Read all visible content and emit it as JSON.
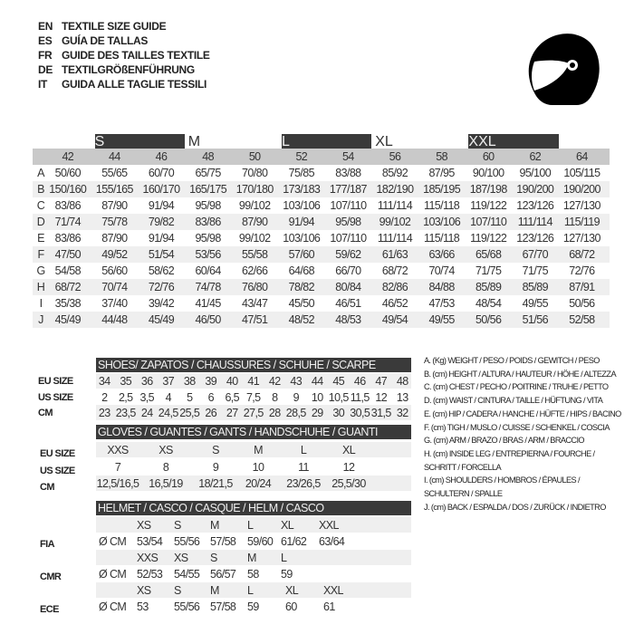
{
  "titles": [
    {
      "code": "EN",
      "text": "TEXTILE SIZE GUIDE"
    },
    {
      "code": "ES",
      "text": "GUÍA DE TALLAS"
    },
    {
      "code": "FR",
      "text": "GUIDE DES TAILLES TEXTILE"
    },
    {
      "code": "DE",
      "text": "TEXTILGRÖßENFÜHRUNG"
    },
    {
      "code": "IT",
      "text": "GUIDA ALLE TAGLIE TESSILI"
    }
  ],
  "icon": "helmet-icon",
  "textile": {
    "size_bands": [
      {
        "label": "S",
        "dark": true
      },
      {
        "label": "M",
        "dark": false
      },
      {
        "label": "L",
        "dark": true
      },
      {
        "label": "XL",
        "dark": false
      },
      {
        "label": "XXL",
        "dark": true
      }
    ],
    "columns": [
      "42",
      "44",
      "46",
      "48",
      "50",
      "52",
      "54",
      "56",
      "58",
      "60",
      "62",
      "64"
    ],
    "rows": [
      {
        "key": "A",
        "values": [
          "50/60",
          "55/65",
          "60/70",
          "65/75",
          "70/80",
          "75/85",
          "83/88",
          "85/92",
          "87/95",
          "90/100",
          "95/100",
          "105/115"
        ]
      },
      {
        "key": "B",
        "values": [
          "150/160",
          "155/165",
          "160/170",
          "165/175",
          "170/180",
          "173/183",
          "177/187",
          "182/190",
          "185/195",
          "187/198",
          "190/200",
          "190/200"
        ]
      },
      {
        "key": "C",
        "values": [
          "83/86",
          "87/90",
          "91/94",
          "95/98",
          "99/102",
          "103/106",
          "107/110",
          "111/114",
          "115/118",
          "119/122",
          "123/126",
          "127/130"
        ]
      },
      {
        "key": "D",
        "values": [
          "71/74",
          "75/78",
          "79/82",
          "83/86",
          "87/90",
          "91/94",
          "95/98",
          "99/102",
          "103/106",
          "107/110",
          "111/114",
          "115/119"
        ]
      },
      {
        "key": "E",
        "values": [
          "83/86",
          "87/90",
          "91/94",
          "95/98",
          "99/102",
          "103/106",
          "107/110",
          "111/114",
          "115/118",
          "119/122",
          "123/126",
          "127/130"
        ]
      },
      {
        "key": "F",
        "values": [
          "47/50",
          "49/52",
          "51/54",
          "53/56",
          "55/58",
          "57/60",
          "59/62",
          "61/63",
          "63/66",
          "65/68",
          "67/70",
          "68/72"
        ]
      },
      {
        "key": "G",
        "values": [
          "54/58",
          "56/60",
          "58/62",
          "60/64",
          "62/66",
          "64/68",
          "66/70",
          "68/72",
          "70/74",
          "71/75",
          "71/75",
          "72/76"
        ]
      },
      {
        "key": "H",
        "values": [
          "68/72",
          "70/74",
          "72/76",
          "74/78",
          "76/80",
          "78/82",
          "80/84",
          "82/86",
          "84/88",
          "85/89",
          "85/89",
          "87/91"
        ]
      },
      {
        "key": "I",
        "values": [
          "35/38",
          "37/40",
          "39/42",
          "41/45",
          "43/47",
          "45/50",
          "46/51",
          "46/52",
          "47/53",
          "48/54",
          "49/55",
          "50/56"
        ]
      },
      {
        "key": "J",
        "values": [
          "45/49",
          "44/48",
          "45/49",
          "46/50",
          "47/51",
          "48/52",
          "48/53",
          "49/54",
          "49/55",
          "50/56",
          "51/56",
          "52/58"
        ]
      }
    ]
  },
  "shoes": {
    "title": "SHOES/ ZAPATOS / CHAUSSURES / SCHUHE / SCARPE",
    "rows": [
      {
        "label": "EU SIZE",
        "values": [
          "34",
          "35",
          "36",
          "37",
          "38",
          "39",
          "40",
          "41",
          "42",
          "43",
          "44",
          "45",
          "46",
          "47",
          "48"
        ]
      },
      {
        "label": "US SIZE",
        "values": [
          "2",
          "2,5",
          "3,5",
          "4",
          "5",
          "6",
          "6,5",
          "7,5",
          "8",
          "9",
          "10",
          "10,5",
          "11,5",
          "12",
          "13"
        ]
      },
      {
        "label": "CM",
        "values": [
          "23",
          "23,5",
          "24",
          "24,5",
          "25,5",
          "26",
          "27",
          "27,5",
          "28",
          "28,5",
          "29",
          "30",
          "30,5",
          "31,5",
          "32"
        ]
      }
    ]
  },
  "gloves": {
    "title": "GLOVES / GUANTES / GANTS / HANDSCHUHE / GUANTI",
    "rows": [
      {
        "label": "EU SIZE",
        "values": [
          "XXS",
          "XS",
          "S",
          "M",
          "L",
          "XL"
        ]
      },
      {
        "label": "US SIZE",
        "values": [
          "7",
          "8",
          "9",
          "10",
          "11",
          "12"
        ]
      },
      {
        "label": "CM",
        "values": [
          "12,5/16,5",
          "16,5/19",
          "18/21,5",
          "20/24",
          "23/26,5",
          "25,5/30"
        ]
      }
    ]
  },
  "helmet": {
    "title": "HELMET / CASCO / CASQUE / HELM / CASCO",
    "unit": "Ø CM",
    "groups": [
      {
        "label": "FIA",
        "sizes": [
          "XS",
          "S",
          "M",
          "L",
          "XL",
          "XXL"
        ],
        "values": [
          "53/54",
          "55/56",
          "57/58",
          "59/60",
          "61/62",
          "63/64"
        ]
      },
      {
        "label": "CMR",
        "sizes": [
          "XXS",
          "XS",
          "S",
          "M",
          "L"
        ],
        "values": [
          "52/53",
          "54/55",
          "56/57",
          "58",
          "59"
        ]
      },
      {
        "label": "ECE",
        "sizes": [
          "XS",
          "S",
          "M",
          "L",
          "XL",
          "XXL"
        ],
        "values": [
          "53",
          "55/56",
          "57/58",
          "59",
          "60",
          "61"
        ]
      }
    ]
  },
  "legend": [
    "A. (Kg) WEIGHT / PESO / POIDS / GEWITCH / PESO",
    "B. (cm) HEIGHT / ALTURA / HAUTEUR / HÖHE / ALTEZZA",
    "C. (cm) CHEST / PECHO / POITRINE / TRUHE / PETTO",
    "D. (cm) WAIST / CINTURA / TAILLE / HÜFTUNG / VITA",
    "E. (cm) HIP / CADERA / HANCHE / HÜFTE / HIPS /  BACINO",
    "F.  (cm) TIGH / MUSLO / CUISSE / SCHENKEL / COSCIA",
    "G. (cm) ARM  / BRAZO / BRAS / ARM / BRACCIO",
    "H. (cm) INSIDE LEG / ENTREPIERNA / FOURCHE /",
    "SCHRITT / FORCELLA",
    "I.  (cm) SHOULDERS / HOMBROS / ÉPAULES /",
    "SCHULTERN / SPALLE",
    "J. (cm) BACK / ESPALDA / DOS / ZURÜCK / INDIETRO"
  ]
}
